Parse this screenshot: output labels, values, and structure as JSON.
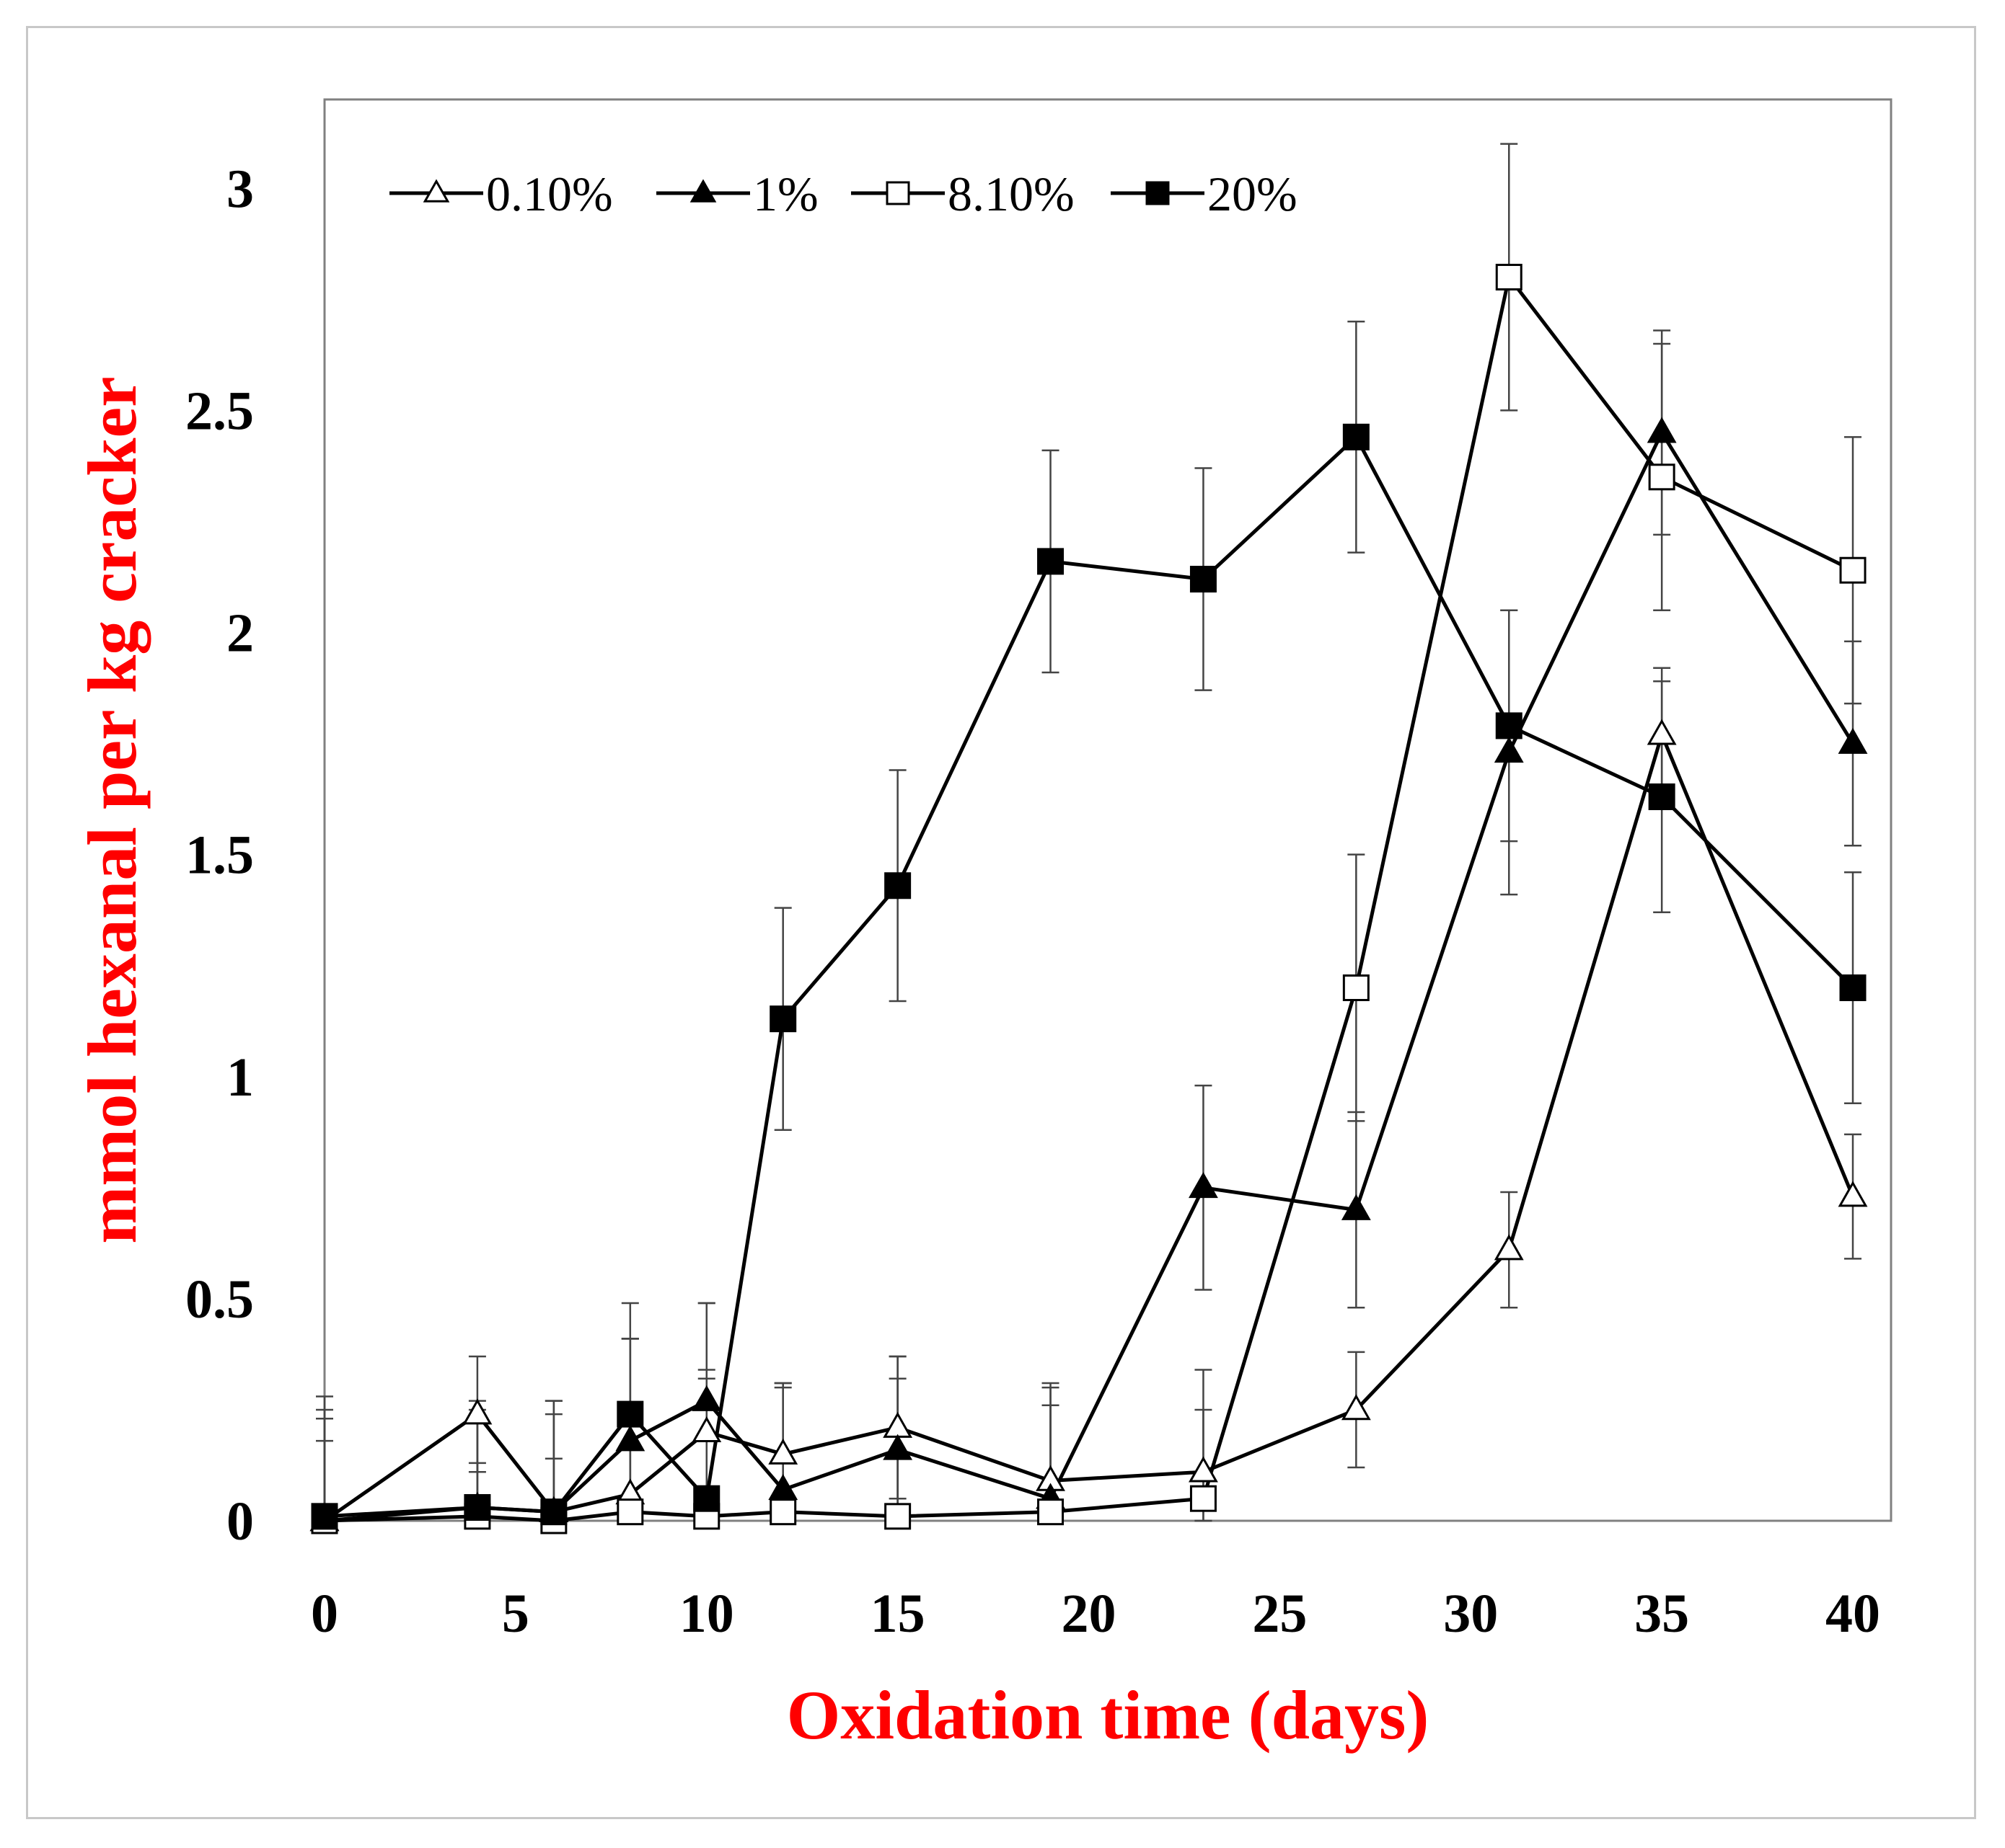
{
  "chart_data": {
    "type": "line",
    "title": "",
    "xlabel": "Oxidation time (days)",
    "ylabel": "mmol hexanal per kg cracker",
    "xlim": [
      0,
      41
    ],
    "ylim": [
      0,
      3.2
    ],
    "xticks": [
      0,
      5,
      10,
      15,
      20,
      25,
      30,
      35,
      40
    ],
    "yticks": [
      0,
      0.5,
      1,
      1.5,
      2,
      2.5,
      3
    ],
    "xtick_labels": [
      "0",
      "5",
      "10",
      "15",
      "20",
      "25",
      "30",
      "35",
      "40"
    ],
    "ytick_labels": [
      "0",
      "0.5",
      "1",
      "1.5",
      "2",
      "2.5",
      "3"
    ],
    "legend_position": "top-left",
    "grid": false,
    "series": [
      {
        "name": "0.10%",
        "marker": "open-triangle",
        "x": [
          0,
          4,
          6,
          8,
          10,
          12,
          15,
          19,
          23,
          27,
          31,
          35,
          40
        ],
        "y": [
          0.0,
          0.24,
          0.02,
          0.06,
          0.2,
          0.15,
          0.21,
          0.09,
          0.11,
          0.25,
          0.61,
          1.77,
          0.73
        ],
        "err": [
          0.28,
          0.13,
          0.12,
          0.35,
          0.14,
          0.16,
          0.16,
          0.17,
          0.14,
          0.13,
          0.13,
          0.15,
          0.14
        ]
      },
      {
        "name": "1%",
        "marker": "filled-triangle",
        "x": [
          0,
          4,
          6,
          8,
          10,
          12,
          15,
          19,
          23,
          27,
          31,
          35,
          40
        ],
        "y": [
          0.0,
          0.03,
          0.02,
          0.18,
          0.27,
          0.07,
          0.16,
          0.05,
          0.75,
          0.7,
          1.73,
          2.45,
          1.75
        ],
        "err": [
          0.25,
          0.24,
          0.25,
          0.23,
          0.22,
          0.23,
          0.21,
          0.26,
          0.23,
          0.22,
          0.32,
          0.23,
          0.23
        ]
      },
      {
        "name": "8.10%",
        "marker": "open-square",
        "x": [
          0,
          4,
          6,
          8,
          10,
          12,
          15,
          19,
          23,
          27,
          31,
          35,
          40
        ],
        "y": [
          0.0,
          0.01,
          0.0,
          0.02,
          0.01,
          0.02,
          0.01,
          0.02,
          0.05,
          1.2,
          2.8,
          2.35,
          2.14
        ],
        "err": [
          0.18,
          0.12,
          0.27,
          0.39,
          0.31,
          0.29,
          0.31,
          0.28,
          0.29,
          0.3,
          0.3,
          0.3,
          0.3
        ]
      },
      {
        "name": "20%",
        "marker": "filled-square",
        "x": [
          0,
          4,
          6,
          8,
          10,
          12,
          15,
          19,
          23,
          27,
          31,
          35,
          40
        ],
        "y": [
          0.01,
          0.03,
          0.02,
          0.24,
          0.05,
          1.13,
          1.43,
          2.16,
          2.12,
          2.44,
          1.79,
          1.63,
          1.2
        ],
        "err": [
          0.22,
          0.22,
          0.22,
          0.25,
          0.44,
          0.25,
          0.26,
          0.25,
          0.25,
          0.26,
          0.26,
          0.26,
          0.26
        ]
      }
    ]
  },
  "colors": {
    "axis_title": "#ff0000",
    "series_line": "#000000",
    "error_bar": "#444444",
    "frame_border": "#c8c8c8",
    "plot_border": "#808080"
  }
}
